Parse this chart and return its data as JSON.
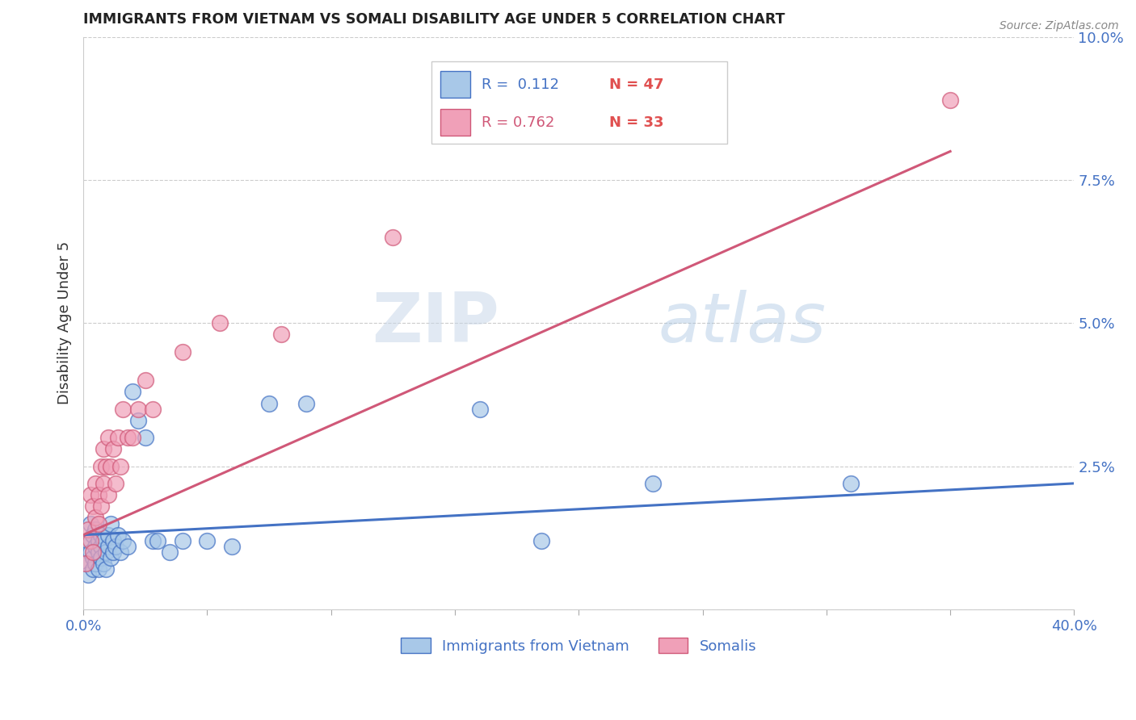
{
  "title": "IMMIGRANTS FROM VIETNAM VS SOMALI DISABILITY AGE UNDER 5 CORRELATION CHART",
  "source": "Source: ZipAtlas.com",
  "ylabel": "Disability Age Under 5",
  "xlim": [
    0.0,
    0.4
  ],
  "ylim": [
    0.0,
    0.1
  ],
  "xticks": [
    0.0,
    0.05,
    0.1,
    0.15,
    0.2,
    0.25,
    0.3,
    0.35,
    0.4
  ],
  "xtick_labels": [
    "0.0%",
    "",
    "",
    "",
    "",
    "",
    "",
    "",
    "40.0%"
  ],
  "yticks": [
    0.0,
    0.025,
    0.05,
    0.075,
    0.1
  ],
  "ytick_labels": [
    "",
    "2.5%",
    "5.0%",
    "7.5%",
    "10.0%"
  ],
  "color_vietnam": "#A8C8E8",
  "color_somali": "#F0A0B8",
  "color_line_vietnam": "#4472C4",
  "color_line_somali": "#D05878",
  "title_color": "#222222",
  "axis_color": "#4472C4",
  "legend_color_r": "#4472C4",
  "legend_color_n": "#E05050",
  "watermark_top": "ZIP",
  "watermark_bottom": "atlas",
  "vietnam_x": [
    0.001,
    0.002,
    0.002,
    0.003,
    0.003,
    0.004,
    0.004,
    0.004,
    0.005,
    0.005,
    0.005,
    0.006,
    0.006,
    0.006,
    0.007,
    0.007,
    0.007,
    0.008,
    0.008,
    0.009,
    0.009,
    0.01,
    0.01,
    0.011,
    0.011,
    0.012,
    0.012,
    0.013,
    0.014,
    0.015,
    0.016,
    0.018,
    0.02,
    0.022,
    0.025,
    0.028,
    0.03,
    0.035,
    0.04,
    0.05,
    0.06,
    0.075,
    0.09,
    0.16,
    0.185,
    0.23,
    0.31
  ],
  "vietnam_y": [
    0.008,
    0.012,
    0.006,
    0.01,
    0.015,
    0.009,
    0.013,
    0.007,
    0.011,
    0.014,
    0.008,
    0.012,
    0.01,
    0.007,
    0.011,
    0.009,
    0.013,
    0.012,
    0.008,
    0.01,
    0.007,
    0.011,
    0.013,
    0.009,
    0.015,
    0.01,
    0.012,
    0.011,
    0.013,
    0.01,
    0.012,
    0.011,
    0.038,
    0.033,
    0.03,
    0.012,
    0.012,
    0.01,
    0.012,
    0.012,
    0.011,
    0.036,
    0.036,
    0.035,
    0.012,
    0.022,
    0.022
  ],
  "somali_x": [
    0.001,
    0.002,
    0.003,
    0.003,
    0.004,
    0.004,
    0.005,
    0.005,
    0.006,
    0.006,
    0.007,
    0.007,
    0.008,
    0.008,
    0.009,
    0.01,
    0.01,
    0.011,
    0.012,
    0.013,
    0.014,
    0.015,
    0.016,
    0.018,
    0.02,
    0.022,
    0.025,
    0.028,
    0.04,
    0.055,
    0.08,
    0.125,
    0.35
  ],
  "somali_y": [
    0.008,
    0.014,
    0.012,
    0.02,
    0.01,
    0.018,
    0.016,
    0.022,
    0.015,
    0.02,
    0.018,
    0.025,
    0.022,
    0.028,
    0.025,
    0.02,
    0.03,
    0.025,
    0.028,
    0.022,
    0.03,
    0.025,
    0.035,
    0.03,
    0.03,
    0.035,
    0.04,
    0.035,
    0.045,
    0.05,
    0.048,
    0.065,
    0.089
  ],
  "vietnam_line_x": [
    0.0,
    0.4
  ],
  "vietnam_line_y": [
    0.013,
    0.022
  ],
  "somali_line_x": [
    0.0,
    0.35
  ],
  "somali_line_y": [
    0.013,
    0.08
  ]
}
